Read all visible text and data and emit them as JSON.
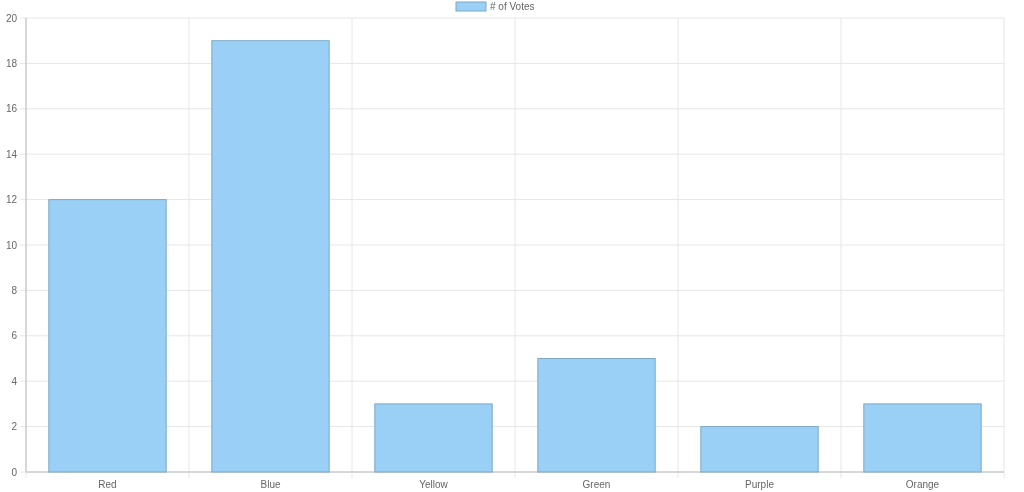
{
  "chart_data": {
    "type": "bar",
    "categories": [
      "Red",
      "Blue",
      "Yellow",
      "Green",
      "Purple",
      "Orange"
    ],
    "series": [
      {
        "name": "# of Votes",
        "color": "#9ad0f5",
        "values": [
          12,
          19,
          3,
          5,
          2,
          3
        ]
      }
    ],
    "ylim": [
      0,
      20
    ],
    "yticks": [
      0,
      2,
      4,
      6,
      8,
      10,
      12,
      14,
      16,
      18,
      20
    ],
    "grid": true,
    "legend": "top"
  }
}
